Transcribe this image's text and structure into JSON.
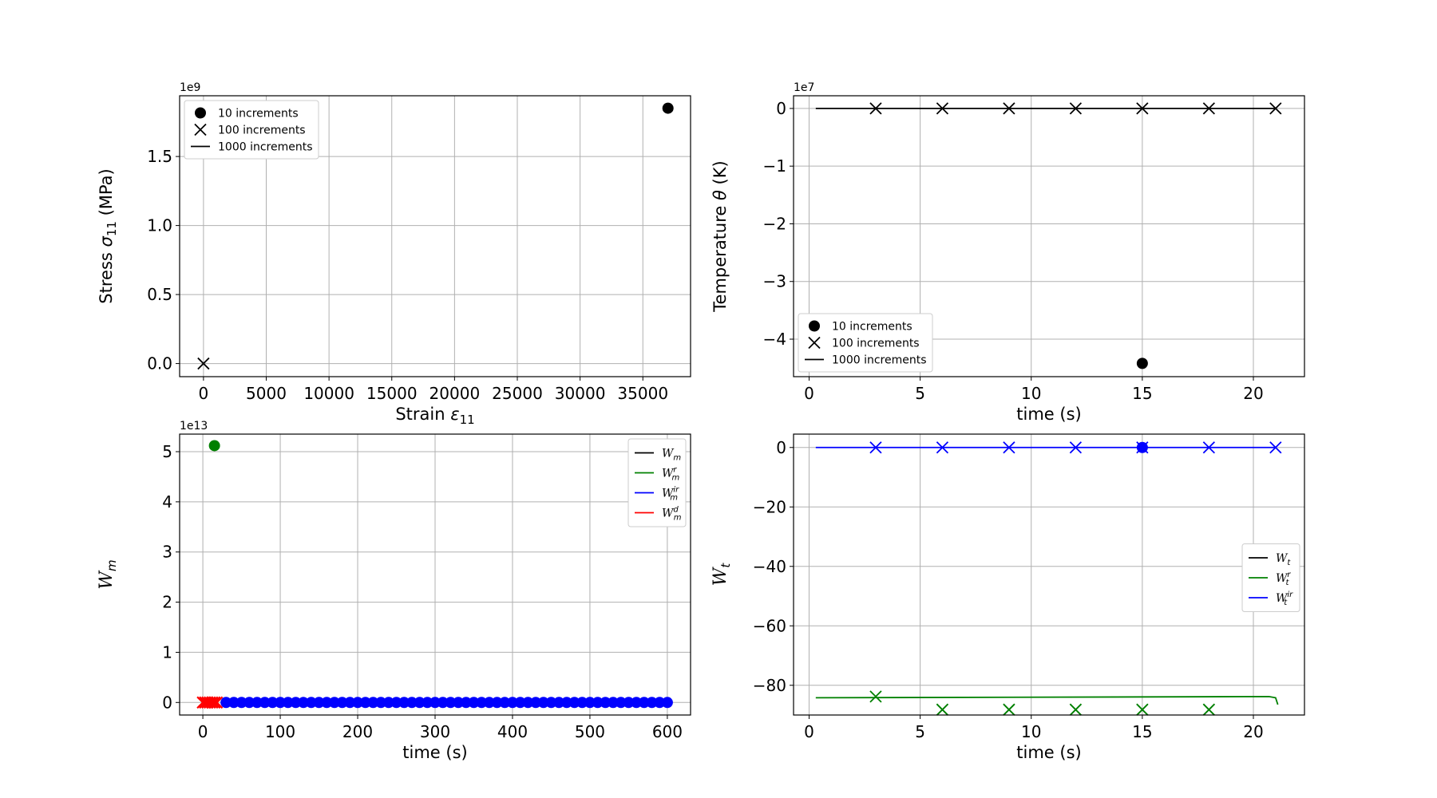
{
  "chart_data": [
    {
      "id": "stress-strain",
      "type": "scatter",
      "xlabel": "Strain",
      "xlabel_sym": "ε",
      "xlabel_sub": "11",
      "ylabel": "Stress",
      "ylabel_sym": "σ",
      "ylabel_sub": "11",
      "ylabel_unit": "(MPa)",
      "y_offset": "1e9",
      "xlim": [
        -1900,
        38800
      ],
      "ylim": [
        -0.095,
        1.94
      ],
      "xticks": [
        0,
        5000,
        10000,
        15000,
        20000,
        25000,
        30000,
        35000
      ],
      "xtick_labels": [
        "0",
        "5000",
        "10000",
        "15000",
        "20000",
        "25000",
        "30000",
        "35000"
      ],
      "yticks": [
        0.0,
        0.5,
        1.0,
        1.5
      ],
      "ytick_labels": [
        "0.0",
        "0.5",
        "1.0",
        "1.5"
      ],
      "grid": true,
      "legend_position": "upper-left",
      "legend": [
        {
          "label": "10 increments",
          "marker": "dot",
          "color": "#000000"
        },
        {
          "label": "100 increments",
          "marker": "x",
          "color": "#000000"
        },
        {
          "label": "1000 increments",
          "marker": "line",
          "color": "#000000"
        }
      ],
      "series": [
        {
          "marker": "dot",
          "color": "#000000",
          "points": [
            [
              37000,
              1.85
            ]
          ]
        },
        {
          "marker": "x",
          "color": "#000000",
          "points": [
            [
              0,
              0.0
            ]
          ]
        }
      ]
    },
    {
      "id": "temperature-time",
      "type": "line",
      "xlabel": "time (s)",
      "ylabel": "Temperature",
      "ylabel_sym": "θ",
      "ylabel_unit": "(K)",
      "y_offset": "1e7",
      "xlim": [
        -0.7,
        22.3
      ],
      "ylim": [
        -4.65,
        0.22
      ],
      "xticks": [
        0,
        5,
        10,
        15,
        20
      ],
      "xtick_labels": [
        "0",
        "5",
        "10",
        "15",
        "20"
      ],
      "yticks": [
        0,
        -1,
        -2,
        -3,
        -4
      ],
      "ytick_labels": [
        "0",
        "−1",
        "−2",
        "−3",
        "−4"
      ],
      "grid": true,
      "legend_position": "lower-left",
      "legend": [
        {
          "label": "10 increments",
          "marker": "dot",
          "color": "#000000"
        },
        {
          "label": "100 increments",
          "marker": "x",
          "color": "#000000"
        },
        {
          "label": "1000 increments",
          "marker": "line",
          "color": "#000000"
        }
      ],
      "series": [
        {
          "marker": "line",
          "color": "#000000",
          "points": [
            [
              0.3,
              0
            ],
            [
              21,
              0
            ]
          ]
        },
        {
          "marker": "x",
          "color": "#000000",
          "points": [
            [
              3,
              0
            ],
            [
              6,
              0
            ],
            [
              9,
              0
            ],
            [
              12,
              0
            ],
            [
              15,
              0
            ],
            [
              18,
              0
            ],
            [
              21,
              0
            ]
          ]
        },
        {
          "marker": "dot",
          "color": "#000000",
          "points": [
            [
              15,
              -4.42
            ]
          ]
        }
      ]
    },
    {
      "id": "mechanical-work",
      "type": "scatter",
      "xlabel": "time (s)",
      "ylabel": "W",
      "ylabel_sub": "m",
      "y_offset": "1e13",
      "xlim": [
        -30,
        630
      ],
      "ylim": [
        -0.25,
        5.35
      ],
      "xticks": [
        0,
        100,
        200,
        300,
        400,
        500,
        600
      ],
      "xtick_labels": [
        "0",
        "100",
        "200",
        "300",
        "400",
        "500",
        "600"
      ],
      "yticks": [
        0,
        1,
        2,
        3,
        4,
        5
      ],
      "ytick_labels": [
        "0",
        "1",
        "2",
        "3",
        "4",
        "5"
      ],
      "grid": true,
      "legend_position": "upper-right",
      "legend": [
        {
          "base": "W",
          "sub": "m",
          "sup": "",
          "color": "#000000"
        },
        {
          "base": "W",
          "sub": "m",
          "sup": "r",
          "color": "#008000"
        },
        {
          "base": "W",
          "sub": "m",
          "sup": "ir",
          "color": "#0000ff"
        },
        {
          "base": "W",
          "sub": "m",
          "sup": "d",
          "color": "#ff0000"
        }
      ],
      "series": [
        {
          "marker": "dot",
          "color": "#008000",
          "points": [
            [
              15,
              5.12
            ]
          ]
        },
        {
          "marker": "dense-dots",
          "color": "#0000ff",
          "x_start": 30,
          "x_end": 603,
          "x_step": 10,
          "y": 0
        },
        {
          "marker": "dense-x",
          "color": "#ff0000",
          "points": [
            [
              0,
              0
            ],
            [
              3,
              0
            ],
            [
              6,
              0
            ],
            [
              9,
              0
            ],
            [
              12,
              0
            ],
            [
              15,
              0
            ],
            [
              18,
              0
            ]
          ]
        }
      ]
    },
    {
      "id": "thermal-work",
      "type": "line",
      "xlabel": "time (s)",
      "ylabel": "W",
      "ylabel_sub": "t",
      "xlim": [
        -0.7,
        22.3
      ],
      "ylim": [
        -90,
        4.5
      ],
      "xticks": [
        0,
        5,
        10,
        15,
        20
      ],
      "xtick_labels": [
        "0",
        "5",
        "10",
        "15",
        "20"
      ],
      "yticks": [
        0,
        -20,
        -40,
        -60,
        -80
      ],
      "ytick_labels": [
        "0",
        "−20",
        "−40",
        "−60",
        "−80"
      ],
      "grid": true,
      "legend_position": "center-right",
      "legend": [
        {
          "base": "W",
          "sub": "t",
          "sup": "",
          "color": "#000000"
        },
        {
          "base": "W",
          "sub": "t",
          "sup": "r",
          "color": "#008000"
        },
        {
          "base": "W",
          "sub": "t",
          "sup": "ir",
          "color": "#0000ff"
        }
      ],
      "series": [
        {
          "marker": "line",
          "color": "#0000ff",
          "points": [
            [
              0.3,
              0
            ],
            [
              21,
              0
            ]
          ]
        },
        {
          "marker": "x",
          "color": "#0000ff",
          "points": [
            [
              3,
              0
            ],
            [
              6,
              0
            ],
            [
              9,
              0
            ],
            [
              12,
              0
            ],
            [
              15,
              0
            ],
            [
              18,
              0
            ],
            [
              21,
              0
            ]
          ]
        },
        {
          "marker": "dot",
          "color": "#0000ff",
          "points": [
            [
              15,
              0
            ]
          ]
        },
        {
          "marker": "line",
          "color": "#008000",
          "points": [
            [
              0.3,
              -84.2
            ],
            [
              20.7,
              -83.8
            ],
            [
              21,
              -84.2
            ],
            [
              21.1,
              -86.5
            ]
          ]
        },
        {
          "marker": "x",
          "color": "#008000",
          "points": [
            [
              3,
              -83.8
            ],
            [
              6,
              -88.2
            ],
            [
              9,
              -88.2
            ],
            [
              12,
              -88.2
            ],
            [
              15,
              -88.2
            ],
            [
              18,
              -88.2
            ]
          ]
        }
      ]
    }
  ]
}
